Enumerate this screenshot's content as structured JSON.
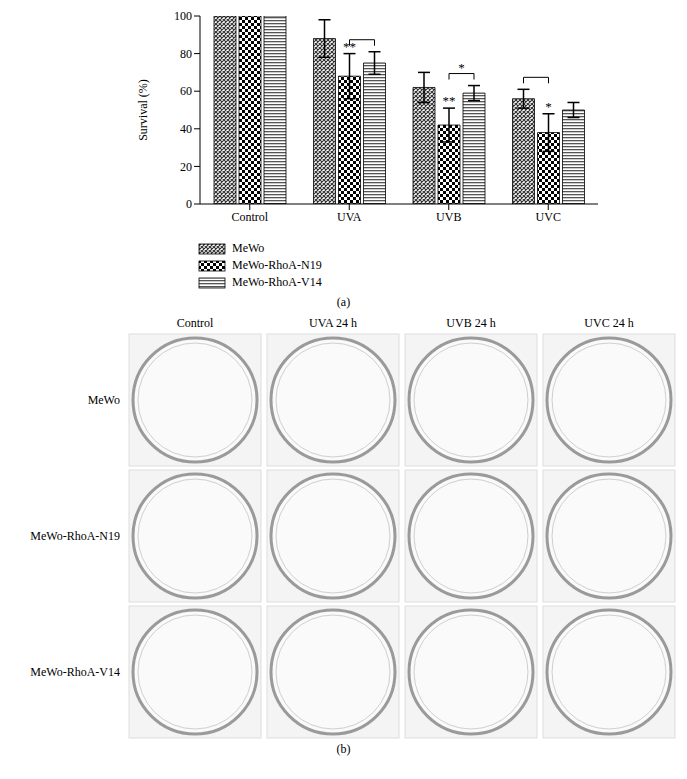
{
  "chart_data": {
    "type": "bar",
    "categories": [
      "Control",
      "UVA",
      "UVB",
      "UVC"
    ],
    "y_label": "Survival (%)",
    "ylim": [
      0,
      100
    ],
    "yticks": [
      0,
      20,
      40,
      60,
      80,
      100
    ],
    "grid": false,
    "series": [
      {
        "name": "MeWo",
        "color": "#333333",
        "values": [
          100,
          88,
          62,
          56
        ],
        "errors": [
          0,
          10,
          8,
          5
        ]
      },
      {
        "name": "MeWo-RhoA-N19",
        "color": "#000000",
        "values": [
          100,
          68,
          42,
          38
        ],
        "errors": [
          0,
          12,
          9,
          10
        ]
      },
      {
        "name": "MeWo-RhoA-V14",
        "color": "#555555",
        "values": [
          100,
          75,
          59,
          50
        ],
        "errors": [
          0,
          6,
          4,
          4
        ]
      }
    ],
    "annotations": [
      {
        "category": "UVA",
        "series": "MeWo-RhoA-N19",
        "text": "**"
      },
      {
        "category": "UVB",
        "series": "MeWo-RhoA-N19",
        "text": "**"
      },
      {
        "category": "UVC",
        "series": "MeWo-RhoA-N19",
        "text": "*"
      }
    ],
    "brackets": [
      {
        "category": "UVA",
        "from": "MeWo-RhoA-N19",
        "to": "MeWo-RhoA-V14"
      },
      {
        "category": "UVB",
        "from": "MeWo-RhoA-N19",
        "to": "MeWo-RhoA-V14",
        "text": "*"
      },
      {
        "category": "UVC",
        "from": "MeWo",
        "to": "MeWo-RhoA-N19"
      }
    ]
  },
  "figure": {
    "panel_a_label": "(a)",
    "panel_b_label": "(b)"
  },
  "plates": {
    "columns": [
      "Control",
      "UVA 24 h",
      "UVB 24 h",
      "UVC 24 h"
    ],
    "rows": [
      "MeWo",
      "MeWo-RhoA-N19",
      "MeWo-RhoA-V14"
    ]
  }
}
